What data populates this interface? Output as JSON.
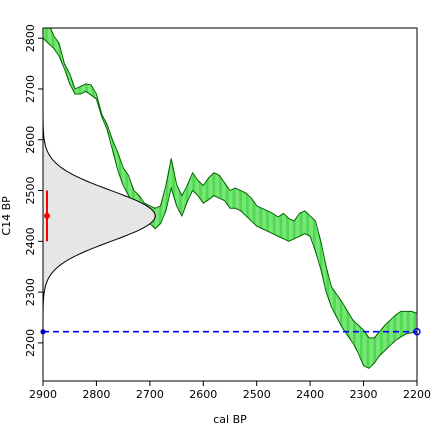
{
  "chart_data": {
    "type": "line",
    "xlabel": "cal BP",
    "ylabel": "C14 BP",
    "xlim": [
      2900,
      2200
    ],
    "ylim": [
      2125,
      2820
    ],
    "x_ticks": [
      2900,
      2800,
      2700,
      2600,
      2500,
      2400,
      2300,
      2200
    ],
    "y_ticks": [
      2200,
      2300,
      2400,
      2500,
      2600,
      2700,
      2800
    ],
    "grid": false,
    "calibration_curve": {
      "fill_color": "#00cc00",
      "outline_color": "#006400",
      "cal_bp": [
        2900,
        2890,
        2880,
        2870,
        2860,
        2850,
        2840,
        2830,
        2820,
        2810,
        2800,
        2790,
        2780,
        2770,
        2760,
        2750,
        2740,
        2730,
        2720,
        2710,
        2700,
        2690,
        2680,
        2670,
        2660,
        2650,
        2640,
        2630,
        2620,
        2610,
        2600,
        2590,
        2580,
        2570,
        2560,
        2550,
        2540,
        2530,
        2520,
        2510,
        2500,
        2490,
        2480,
        2470,
        2460,
        2450,
        2440,
        2430,
        2420,
        2410,
        2400,
        2390,
        2380,
        2370,
        2360,
        2350,
        2340,
        2330,
        2320,
        2310,
        2300,
        2290,
        2280,
        2270,
        2260,
        2250,
        2240,
        2230,
        2220,
        2210,
        2200
      ],
      "upper": [
        2823,
        2830,
        2805,
        2790,
        2750,
        2730,
        2700,
        2705,
        2710,
        2708,
        2690,
        2650,
        2630,
        2600,
        2575,
        2545,
        2530,
        2500,
        2490,
        2475,
        2470,
        2465,
        2470,
        2510,
        2563,
        2512,
        2490,
        2510,
        2535,
        2520,
        2510,
        2525,
        2535,
        2530,
        2515,
        2500,
        2505,
        2500,
        2495,
        2485,
        2470,
        2465,
        2460,
        2455,
        2448,
        2455,
        2445,
        2440,
        2455,
        2460,
        2450,
        2440,
        2400,
        2350,
        2310,
        2295,
        2280,
        2262,
        2245,
        2235,
        2225,
        2210,
        2210,
        2222,
        2235,
        2245,
        2255,
        2262,
        2262,
        2262,
        2258
      ],
      "lower": [
        2800,
        2790,
        2780,
        2765,
        2740,
        2710,
        2690,
        2690,
        2695,
        2688,
        2680,
        2645,
        2620,
        2580,
        2540,
        2510,
        2490,
        2470,
        2455,
        2440,
        2435,
        2425,
        2435,
        2460,
        2505,
        2470,
        2450,
        2478,
        2500,
        2490,
        2475,
        2482,
        2490,
        2485,
        2480,
        2465,
        2465,
        2460,
        2450,
        2440,
        2430,
        2425,
        2420,
        2415,
        2410,
        2405,
        2400,
        2405,
        2410,
        2415,
        2410,
        2380,
        2345,
        2300,
        2270,
        2250,
        2230,
        2215,
        2200,
        2180,
        2155,
        2150,
        2160,
        2175,
        2185,
        2195,
        2205,
        2212,
        2218,
        2220,
        2220
      ]
    },
    "c14_date": {
      "label": "C14 BP",
      "mean": 2450,
      "error": 50,
      "distribution_fill": "#e6e6e6",
      "point_color": "#ff0000"
    },
    "reference_line": {
      "y": 2222,
      "style": "dashed",
      "color": "#0000ff"
    }
  }
}
